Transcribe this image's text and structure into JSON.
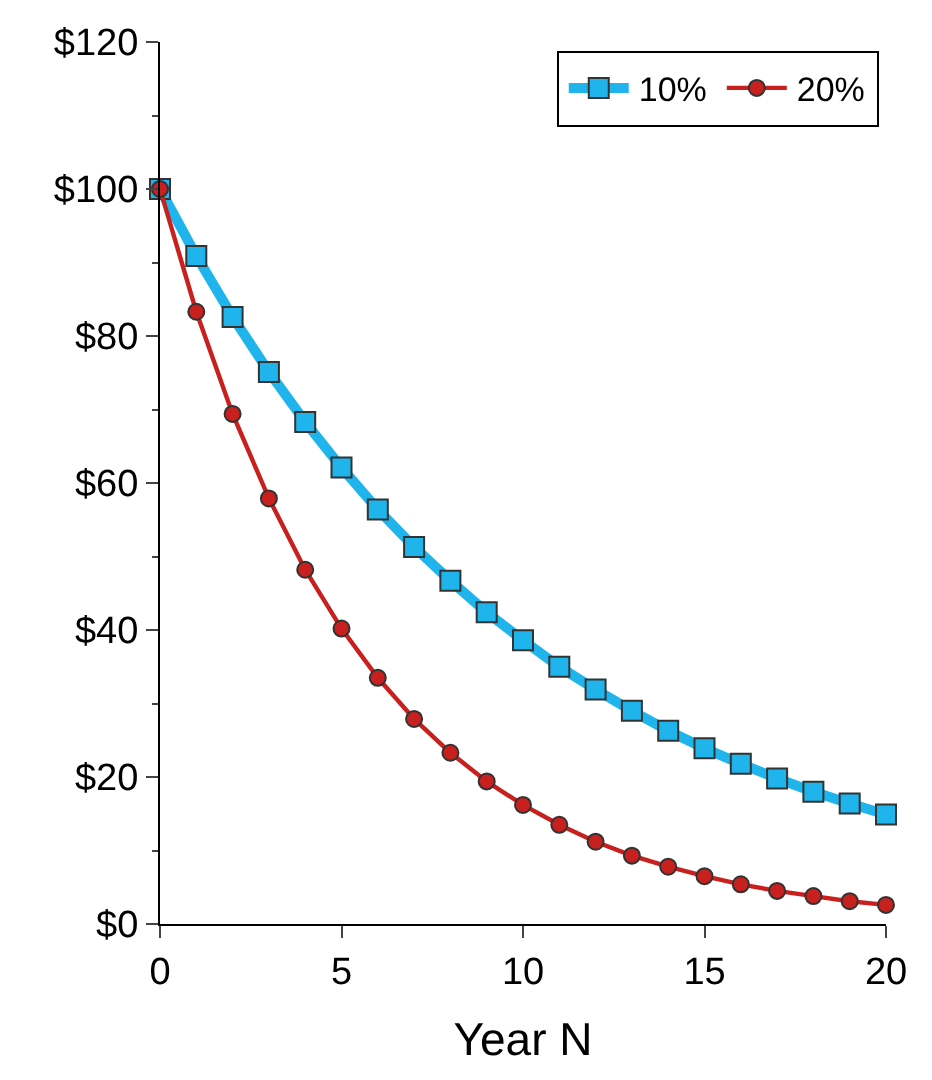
{
  "chart_data": {
    "type": "line",
    "xlabel": "Year N",
    "x": [
      0,
      1,
      2,
      3,
      4,
      5,
      6,
      7,
      8,
      9,
      10,
      11,
      12,
      13,
      14,
      15,
      16,
      17,
      18,
      19,
      20
    ],
    "series": [
      {
        "name": "10%",
        "color": "#1fb4ec",
        "marker": "square",
        "values": [
          100,
          90.9,
          82.6,
          75.1,
          68.3,
          62.1,
          56.4,
          51.3,
          46.7,
          42.4,
          38.6,
          35.0,
          31.9,
          29.0,
          26.3,
          23.9,
          21.8,
          19.8,
          18.0,
          16.4,
          14.9
        ]
      },
      {
        "name": "20%",
        "color": "#c8201e",
        "marker": "circle",
        "values": [
          100,
          83.3,
          69.4,
          57.9,
          48.2,
          40.2,
          33.5,
          27.9,
          23.3,
          19.4,
          16.2,
          13.5,
          11.2,
          9.3,
          7.8,
          6.5,
          5.4,
          4.5,
          3.8,
          3.1,
          2.6
        ]
      }
    ],
    "xlim": [
      0,
      20
    ],
    "xticks": [
      0,
      5,
      10,
      15,
      20
    ],
    "ylim": [
      0,
      120
    ],
    "yticks": [
      {
        "value": 0,
        "label": "$0"
      },
      {
        "value": 20,
        "label": "$20"
      },
      {
        "value": 40,
        "label": "$40"
      },
      {
        "value": 60,
        "label": "$60"
      },
      {
        "value": 80,
        "label": "$80"
      },
      {
        "value": 100,
        "label": "$100"
      },
      {
        "value": 120,
        "label": "$120"
      }
    ],
    "legend": "top right",
    "line_style": "solid"
  }
}
